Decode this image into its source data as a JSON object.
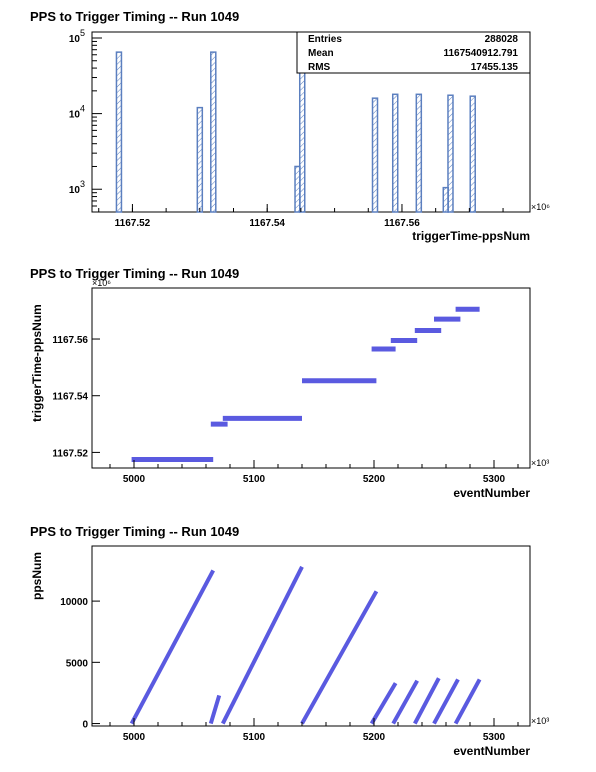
{
  "chart_data": [
    {
      "type": "bar",
      "title": "PPS to Trigger Timing -- Run 1049",
      "xlabel": "triggerTime-ppsNum",
      "ylabel": "",
      "x_multiplier": "×10⁶",
      "xlim": [
        1167.514,
        1167.579
      ],
      "ylim": [
        500,
        120000
      ],
      "y_scale": "log",
      "x_ticks": [
        "1167.52",
        "1167.54",
        "1167.56"
      ],
      "x_tick_values": [
        1167.52,
        1167.54,
        1167.56
      ],
      "y_ticks": [
        {
          "base": "10",
          "exp": "3",
          "value": 1000
        },
        {
          "base": "10",
          "exp": "4",
          "value": 10000
        },
        {
          "base": "10",
          "exp": "5",
          "value": 100000
        }
      ],
      "bars": [
        {
          "x": 1167.518,
          "value": 65000
        },
        {
          "x": 1167.53,
          "value": 12000
        },
        {
          "x": 1167.532,
          "value": 65000
        },
        {
          "x": 1167.5445,
          "value": 2000
        },
        {
          "x": 1167.5452,
          "value": 65000
        },
        {
          "x": 1167.556,
          "value": 16000
        },
        {
          "x": 1167.559,
          "value": 18000
        },
        {
          "x": 1167.5625,
          "value": 18000
        },
        {
          "x": 1167.5665,
          "value": 1050
        },
        {
          "x": 1167.5672,
          "value": 17500
        },
        {
          "x": 1167.5705,
          "value": 17000
        }
      ],
      "stats": {
        "entries_label": "Entries",
        "entries": "288028",
        "mean_label": "Mean",
        "mean": "1167540912.791",
        "rms_label": "RMS",
        "rms": "17455.135"
      },
      "grid": false,
      "color": "#5b7fbf"
    },
    {
      "type": "scatter",
      "title": "PPS to Trigger Timing -- Run 1049",
      "xlabel": "eventNumber",
      "ylabel": "triggerTime-ppsNum",
      "x_multiplier": "×10³",
      "y_multiplier": "×10⁶",
      "xlim": [
        4965,
        5330
      ],
      "ylim": [
        1167.5145,
        1167.578
      ],
      "x_ticks": [
        "5000",
        "5100",
        "5200",
        "5300"
      ],
      "x_tick_values": [
        5000,
        5100,
        5200,
        5300
      ],
      "y_ticks": [
        "1167.52",
        "1167.54",
        "1167.56"
      ],
      "y_tick_values": [
        1167.52,
        1167.54,
        1167.56
      ],
      "segments": [
        {
          "x0": 4998,
          "x1": 5066,
          "y": 1167.5175
        },
        {
          "x0": 5064,
          "x1": 5078,
          "y": 1167.53
        },
        {
          "x0": 5074,
          "x1": 5140,
          "y": 1167.532
        },
        {
          "x0": 5140,
          "x1": 5202,
          "y": 1167.5453
        },
        {
          "x0": 5198,
          "x1": 5218,
          "y": 1167.5565
        },
        {
          "x0": 5214,
          "x1": 5236,
          "y": 1167.5595
        },
        {
          "x0": 5234,
          "x1": 5256,
          "y": 1167.563
        },
        {
          "x0": 5250,
          "x1": 5272,
          "y": 1167.567
        },
        {
          "x0": 5268,
          "x1": 5288,
          "y": 1167.5705
        }
      ],
      "grid": false,
      "color": "#5a5ae0"
    },
    {
      "type": "scatter",
      "title": "PPS to Trigger Timing -- Run 1049",
      "xlabel": "eventNumber",
      "ylabel": "ppsNum",
      "x_multiplier": "×10³",
      "xlim": [
        4965,
        5330
      ],
      "ylim": [
        -200,
        14500
      ],
      "x_ticks": [
        "5000",
        "5100",
        "5200",
        "5300"
      ],
      "x_tick_values": [
        5000,
        5100,
        5200,
        5300
      ],
      "y_ticks": [
        "0",
        "5000",
        "10000"
      ],
      "y_tick_values": [
        0,
        5000,
        10000
      ],
      "segments": [
        {
          "x0": 4998,
          "y0": 0,
          "x1": 5066,
          "y1": 12500
        },
        {
          "x0": 5064,
          "y0": 0,
          "x1": 5071,
          "y1": 2300
        },
        {
          "x0": 5074,
          "y0": 0,
          "x1": 5140,
          "y1": 12800
        },
        {
          "x0": 5140,
          "y0": 0,
          "x1": 5202,
          "y1": 10800
        },
        {
          "x0": 5198,
          "y0": 0,
          "x1": 5218,
          "y1": 3300
        },
        {
          "x0": 5216,
          "y0": 0,
          "x1": 5236,
          "y1": 3500
        },
        {
          "x0": 5234,
          "y0": 0,
          "x1": 5254,
          "y1": 3700
        },
        {
          "x0": 5250,
          "y0": 0,
          "x1": 5270,
          "y1": 3600
        },
        {
          "x0": 5268,
          "y0": 0,
          "x1": 5288,
          "y1": 3600
        }
      ],
      "grid": false,
      "color": "#5a5ae0"
    }
  ]
}
